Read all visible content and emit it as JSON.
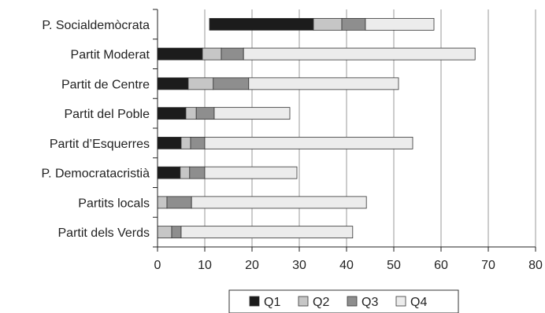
{
  "chart_data": {
    "type": "bar",
    "orientation": "horizontal",
    "stacked": true,
    "categories": [
      "P. Socialdemòcrata",
      "Partit Moderat",
      "Partit de Centre",
      "Partit del Poble",
      "Partit d’Esquerres",
      "P. Democratacristià",
      "Partits locals",
      "Partit dels Verds"
    ],
    "base": [
      11,
      0,
      0,
      0,
      0,
      0,
      0,
      0
    ],
    "series": [
      {
        "name": "Q1",
        "color": "#1c1c1c",
        "values": [
          22,
          9.5,
          6.5,
          6,
          5,
          4.8,
          0,
          0
        ]
      },
      {
        "name": "Q2",
        "color": "#c6c6c6",
        "values": [
          6,
          4,
          5.3,
          2.2,
          2,
          2,
          2,
          3
        ]
      },
      {
        "name": "Q3",
        "color": "#8e8e8e",
        "values": [
          5,
          4.7,
          7.5,
          3.8,
          3,
          3.2,
          5.2,
          2
        ]
      },
      {
        "name": "Q4",
        "color": "#ececec",
        "values": [
          14.5,
          49,
          31.7,
          16,
          44,
          19.5,
          37,
          36.3
        ]
      }
    ],
    "xlim": [
      0,
      80
    ],
    "xticks": [
      "0",
      "10",
      "20",
      "30",
      "40",
      "50",
      "60",
      "70",
      "80"
    ],
    "grid": "vertical",
    "legend": "bottom"
  }
}
